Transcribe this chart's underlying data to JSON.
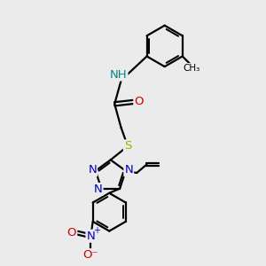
{
  "background_color": "#ebebeb",
  "bond_color": "#000000",
  "bond_width": 1.6,
  "atom_colors": {
    "N": "#0000cc",
    "O": "#cc0000",
    "S": "#aaaa00",
    "H": "#008888",
    "C": "#000000"
  },
  "font_size_atom": 9.5,
  "xlim": [
    0,
    10
  ],
  "ylim": [
    0,
    10
  ]
}
